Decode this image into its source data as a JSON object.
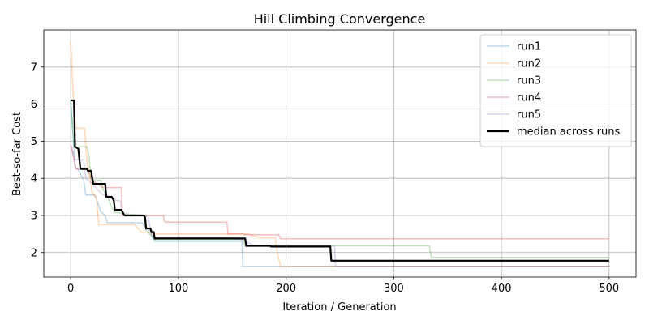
{
  "chart_data": {
    "type": "line",
    "title": "Hill Climbing Convergence",
    "xlabel": "Iteration / Generation",
    "ylabel": "Best-so-far Cost",
    "xlim": [
      -25,
      525
    ],
    "ylim": [
      1.34,
      8.0
    ],
    "xticks": [
      0,
      100,
      200,
      300,
      400,
      500
    ],
    "yticks": [
      2,
      3,
      4,
      5,
      6,
      7
    ],
    "grid": true,
    "legend_position": "top-right",
    "series": [
      {
        "name": "run1",
        "color": "#1f77b4",
        "opacity": 0.3,
        "points": [
          [
            0,
            6.1
          ],
          [
            4,
            4.3
          ],
          [
            8,
            4.2
          ],
          [
            12,
            3.95
          ],
          [
            14,
            3.55
          ],
          [
            22,
            3.55
          ],
          [
            25,
            3.35
          ],
          [
            28,
            3.1
          ],
          [
            32,
            3.0
          ],
          [
            34,
            2.8
          ],
          [
            66,
            2.8
          ],
          [
            74,
            2.55
          ],
          [
            77,
            2.35
          ],
          [
            78,
            2.3
          ],
          [
            159,
            2.3
          ],
          [
            160,
            1.62
          ],
          [
            500,
            1.62
          ]
        ]
      },
      {
        "name": "run2",
        "color": "#ff7f0e",
        "opacity": 0.3,
        "points": [
          [
            0,
            7.7
          ],
          [
            3,
            5.8
          ],
          [
            5,
            5.35
          ],
          [
            13,
            5.35
          ],
          [
            15,
            4.5
          ],
          [
            18,
            4.0
          ],
          [
            20,
            3.6
          ],
          [
            24,
            3.5
          ],
          [
            26,
            2.75
          ],
          [
            60,
            2.75
          ],
          [
            65,
            2.55
          ],
          [
            70,
            2.55
          ],
          [
            78,
            2.5
          ],
          [
            165,
            2.5
          ],
          [
            175,
            2.4
          ],
          [
            190,
            2.4
          ],
          [
            192,
            1.95
          ],
          [
            195,
            1.62
          ],
          [
            500,
            1.62
          ]
        ]
      },
      {
        "name": "run3",
        "color": "#2ca02c",
        "opacity": 0.3,
        "points": [
          [
            0,
            6.1
          ],
          [
            3,
            4.85
          ],
          [
            15,
            4.85
          ],
          [
            17,
            4.6
          ],
          [
            19,
            3.95
          ],
          [
            28,
            3.95
          ],
          [
            30,
            3.7
          ],
          [
            34,
            3.5
          ],
          [
            40,
            3.1
          ],
          [
            48,
            3.05
          ],
          [
            68,
            3.0
          ],
          [
            70,
            2.6
          ],
          [
            78,
            2.35
          ],
          [
            160,
            2.35
          ],
          [
            162,
            2.18
          ],
          [
            333,
            2.18
          ],
          [
            335,
            1.87
          ],
          [
            500,
            1.87
          ]
        ]
      },
      {
        "name": "run4",
        "color": "#d62728",
        "opacity": 0.3,
        "points": [
          [
            0,
            4.9
          ],
          [
            5,
            4.25
          ],
          [
            15,
            4.25
          ],
          [
            20,
            3.95
          ],
          [
            30,
            3.75
          ],
          [
            47,
            3.75
          ],
          [
            48,
            3.0
          ],
          [
            86,
            3.0
          ],
          [
            87,
            2.85
          ],
          [
            88,
            2.82
          ],
          [
            145,
            2.82
          ],
          [
            146,
            2.5
          ],
          [
            160,
            2.5
          ],
          [
            162,
            2.48
          ],
          [
            193,
            2.48
          ],
          [
            195,
            2.37
          ],
          [
            500,
            2.37
          ]
        ]
      },
      {
        "name": "run5",
        "color": "#9467bd",
        "opacity": 0.3,
        "points": [
          [
            0,
            4.9
          ],
          [
            4,
            4.5
          ],
          [
            12,
            4.5
          ],
          [
            14,
            4.0
          ],
          [
            20,
            3.85
          ],
          [
            30,
            3.55
          ],
          [
            40,
            3.5
          ],
          [
            42,
            3.4
          ],
          [
            46,
            3.4
          ],
          [
            48,
            3.0
          ],
          [
            68,
            3.0
          ],
          [
            72,
            2.95
          ],
          [
            75,
            2.5
          ],
          [
            78,
            2.4
          ],
          [
            140,
            2.4
          ],
          [
            158,
            2.35
          ],
          [
            170,
            2.2
          ],
          [
            185,
            2.17
          ],
          [
            245,
            2.17
          ],
          [
            246,
            1.62
          ],
          [
            500,
            1.62
          ]
        ]
      },
      {
        "name": "median across runs",
        "color": "#000000",
        "opacity": 1,
        "width": 2.2,
        "points": [
          [
            0,
            6.1
          ],
          [
            3,
            6.1
          ],
          [
            4,
            4.85
          ],
          [
            7,
            4.8
          ],
          [
            9,
            4.25
          ],
          [
            15,
            4.25
          ],
          [
            16,
            4.2
          ],
          [
            19,
            4.2
          ],
          [
            20,
            4.0
          ],
          [
            21,
            3.85
          ],
          [
            32,
            3.85
          ],
          [
            33,
            3.5
          ],
          [
            38,
            3.5
          ],
          [
            40,
            3.4
          ],
          [
            41,
            3.15
          ],
          [
            47,
            3.15
          ],
          [
            48,
            3.1
          ],
          [
            50,
            3.0
          ],
          [
            68,
            3.0
          ],
          [
            69,
            2.95
          ],
          [
            70,
            2.65
          ],
          [
            74,
            2.65
          ],
          [
            75,
            2.55
          ],
          [
            77,
            2.55
          ],
          [
            78,
            2.38
          ],
          [
            162,
            2.38
          ],
          [
            163,
            2.18
          ],
          [
            185,
            2.18
          ],
          [
            186,
            2.16
          ],
          [
            241,
            2.16
          ],
          [
            242,
            1.78
          ],
          [
            500,
            1.78
          ]
        ]
      }
    ]
  }
}
